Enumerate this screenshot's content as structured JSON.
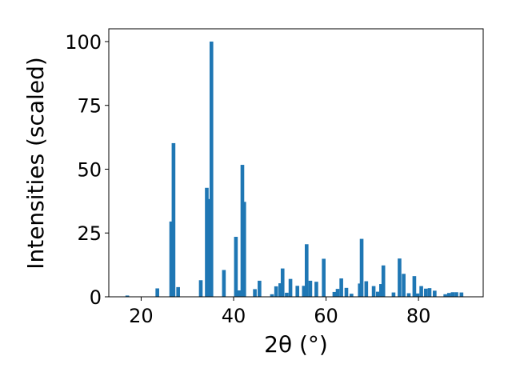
{
  "chart_data": {
    "type": "bar",
    "xlabel": "2θ (°)",
    "ylabel": "Intensities (scaled)",
    "xlim": [
      13,
      94
    ],
    "ylim": [
      0,
      105
    ],
    "xticks": [
      20,
      40,
      60,
      80
    ],
    "yticks": [
      0,
      25,
      50,
      75,
      100
    ],
    "bar_width_deg": 0.8,
    "grid": false,
    "color": "#1f77b4",
    "series": [
      {
        "x": [
          17.0,
          23.5,
          26.5,
          27.0,
          28.0,
          32.9,
          34.2,
          34.6,
          35.2,
          37.9,
          40.5,
          41.2,
          41.9,
          42.3,
          44.6,
          45.6,
          48.3,
          49.2,
          50.1,
          50.6,
          51.5,
          52.3,
          53.8,
          55.2,
          55.8,
          56.6,
          57.9,
          59.5,
          61.8,
          62.5,
          63.3,
          64.4,
          65.5,
          67.3,
          67.7,
          68.7,
          70.3,
          71.2,
          71.9,
          72.4,
          74.6,
          75.9,
          76.8,
          77.9,
          79.1,
          79.8,
          80.6,
          81.6,
          82.4,
          83.5,
          85.8,
          86.6,
          87.4,
          88.2,
          89.3
        ],
        "values": [
          0.5,
          3.3,
          29.5,
          60.2,
          3.8,
          6.5,
          42.7,
          38.3,
          100.0,
          10.5,
          23.5,
          2.5,
          51.7,
          37.2,
          3.0,
          6.3,
          1.0,
          4.1,
          5.3,
          11.1,
          1.6,
          7.0,
          4.3,
          4.3,
          20.6,
          6.3,
          5.9,
          14.9,
          1.9,
          3.1,
          7.2,
          3.5,
          1.2,
          5.2,
          22.7,
          6.1,
          4.2,
          2.0,
          5.0,
          12.3,
          1.7,
          15.0,
          9.0,
          1.4,
          8.1,
          1.3,
          4.2,
          3.2,
          3.4,
          2.4,
          1.0,
          1.5,
          1.8,
          1.8,
          1.7
        ]
      }
    ]
  }
}
